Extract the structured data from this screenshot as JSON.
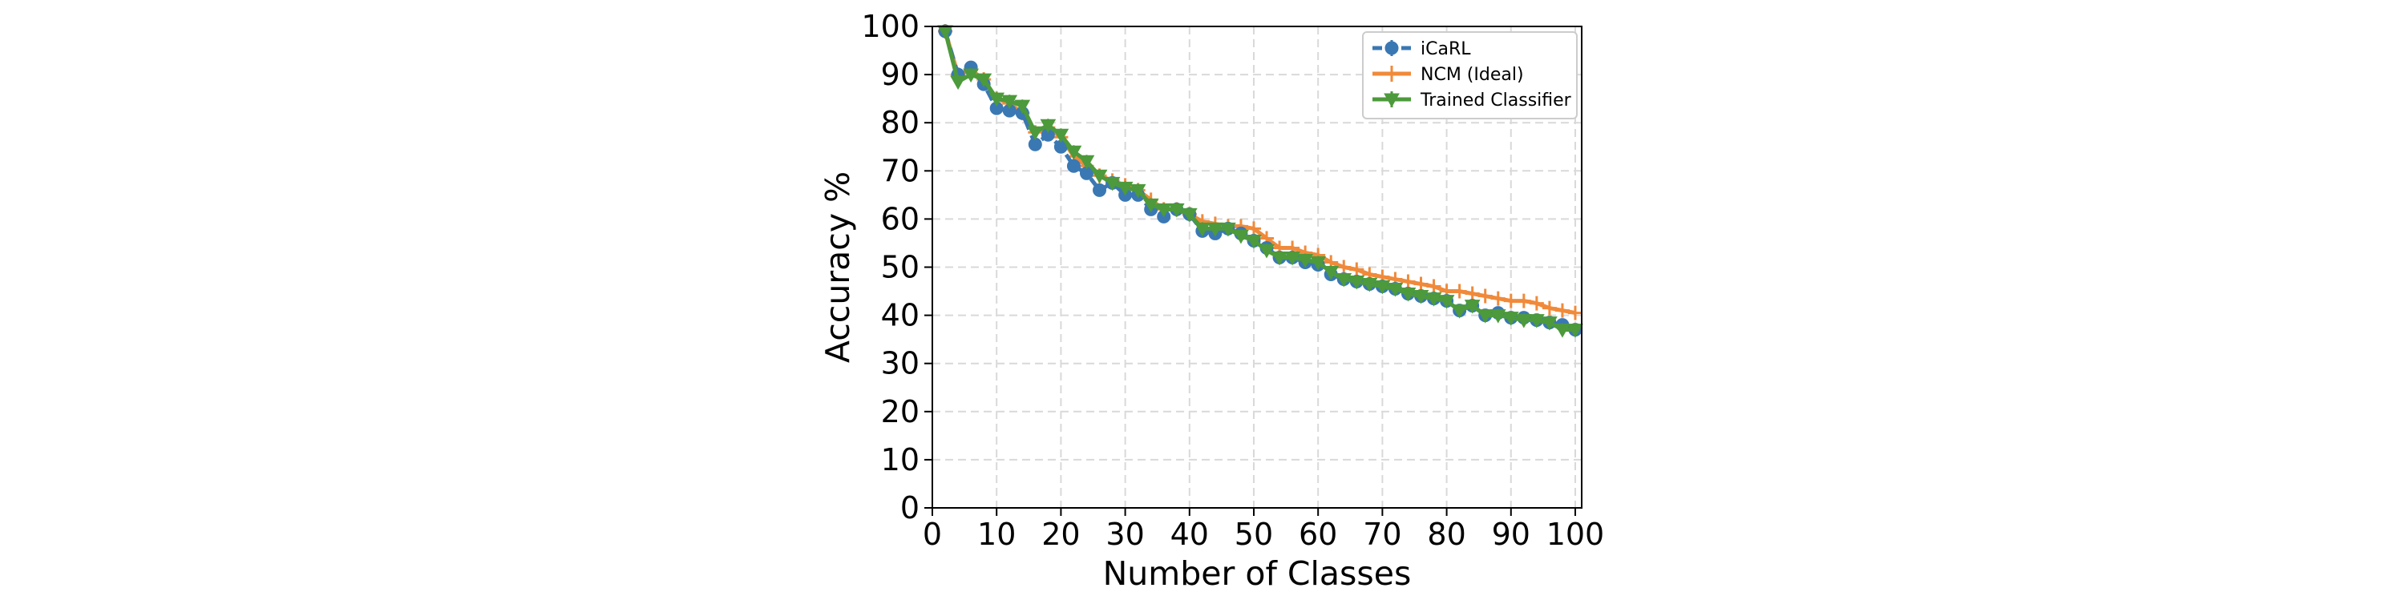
{
  "chart_data": {
    "type": "line",
    "xlabel": "Number of Classes",
    "ylabel": "Accuracy %",
    "xlim": [
      0,
      101
    ],
    "ylim": [
      0,
      100
    ],
    "xticks": [
      0,
      10,
      20,
      30,
      40,
      50,
      60,
      70,
      80,
      90,
      100
    ],
    "yticks": [
      0,
      10,
      20,
      30,
      40,
      50,
      60,
      70,
      80,
      90,
      100
    ],
    "grid": true,
    "legend_position": "top-right",
    "x": [
      2,
      4,
      6,
      8,
      10,
      12,
      14,
      16,
      18,
      20,
      22,
      24,
      26,
      28,
      30,
      32,
      34,
      36,
      38,
      40,
      42,
      44,
      46,
      48,
      50,
      52,
      54,
      56,
      58,
      60,
      62,
      64,
      66,
      68,
      70,
      72,
      74,
      76,
      78,
      80,
      82,
      84,
      86,
      88,
      90,
      92,
      94,
      96,
      98,
      100
    ],
    "series": [
      {
        "name": "iCaRL",
        "color": "#3a78b3",
        "style": "dashed",
        "marker": "circle",
        "values": [
          99,
          90,
          91.5,
          88,
          83,
          82.5,
          82,
          75.5,
          77.5,
          75,
          71,
          69.5,
          66,
          67.5,
          65,
          65,
          62,
          60.5,
          62,
          61,
          57.5,
          57,
          58,
          57,
          55.5,
          54,
          52,
          52,
          51,
          50.5,
          48.5,
          47.5,
          47,
          46.5,
          46,
          45.5,
          44.5,
          44,
          43.5,
          43,
          41,
          42,
          40,
          40.5,
          39.5,
          39.5,
          39,
          38.5,
          38,
          37
        ]
      },
      {
        "name": "NCM (Ideal)",
        "color": "#f08a3a",
        "style": "solid",
        "marker": "plus",
        "values": [
          99,
          90,
          91,
          89,
          85,
          84,
          82,
          78,
          79,
          77,
          73,
          71,
          69,
          68,
          67,
          66,
          64,
          62,
          62,
          61,
          59.5,
          59,
          58.5,
          58.5,
          58,
          56,
          54,
          54,
          53,
          52.5,
          51,
          50,
          49.5,
          48.5,
          48,
          47.5,
          47,
          46.5,
          46,
          45,
          45,
          44.5,
          44,
          43.5,
          43,
          43,
          42.5,
          41.5,
          41,
          40.5
        ]
      },
      {
        "name": "Trained Classifier",
        "color": "#4c9a3b",
        "style": "solid",
        "marker": "triangle-down",
        "values": [
          99,
          88.5,
          90,
          89,
          85,
          84.5,
          83.5,
          78,
          79.5,
          77.5,
          74,
          72,
          69,
          67.5,
          66.5,
          66,
          63,
          62,
          62,
          61,
          58,
          58,
          58,
          56.5,
          55.5,
          53.5,
          52,
          52,
          51.5,
          51,
          49,
          47.5,
          47,
          46.5,
          46,
          45.5,
          44.5,
          44,
          43.5,
          43,
          41,
          42,
          40,
          40,
          39.5,
          39,
          39,
          38.5,
          37,
          37
        ]
      }
    ]
  }
}
